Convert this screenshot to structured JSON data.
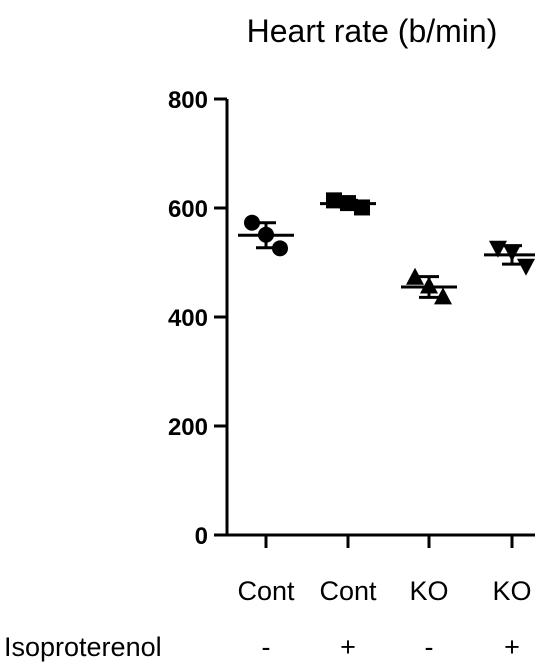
{
  "chart_data": {
    "type": "scatter",
    "title": "Heart rate (b/min)",
    "ylim": [
      0,
      800
    ],
    "yticks": [
      0,
      200,
      400,
      600,
      800
    ],
    "categories": [
      "Cont",
      "Cont",
      "KO",
      "KO"
    ],
    "row_label": "Isoproterenol",
    "treatment": [
      "-",
      "+",
      "-",
      "+"
    ],
    "groups": [
      {
        "category": "Cont",
        "treatment": "-",
        "marker": "circle",
        "points": [
          573,
          551,
          526
        ],
        "mean": 550,
        "sd": 23
      },
      {
        "category": "Cont",
        "treatment": "+",
        "marker": "square",
        "points": [
          614,
          609,
          601
        ],
        "mean": 608,
        "sd": 6
      },
      {
        "category": "KO",
        "treatment": "-",
        "marker": "triangle-up",
        "points": [
          472,
          456,
          436
        ],
        "mean": 455,
        "sd": 19
      },
      {
        "category": "KO",
        "treatment": "+",
        "marker": "triangle-down",
        "points": [
          527,
          520,
          494
        ],
        "mean": 514,
        "sd": 17
      }
    ],
    "color": "#000000",
    "grid": false
  }
}
